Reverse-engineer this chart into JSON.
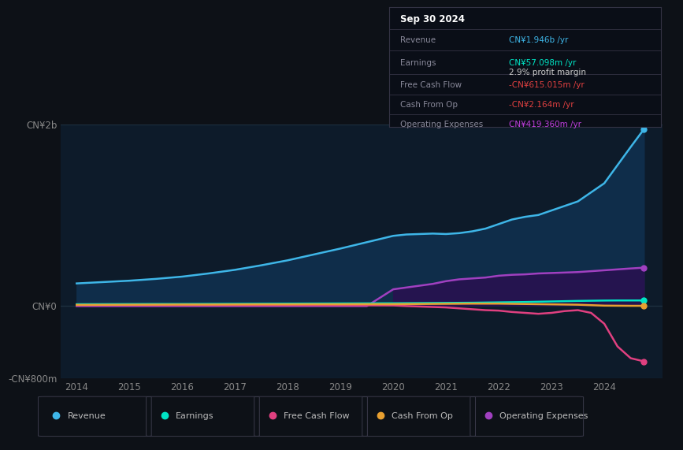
{
  "bg_color": "#0d1117",
  "plot_bg_color": "#0d1b2a",
  "title_box": {
    "date": "Sep 30 2024",
    "rows": [
      {
        "label": "Revenue",
        "value": "CN¥1.946b /yr",
        "value_color": "#3eb6e8"
      },
      {
        "label": "Earnings",
        "value": "CN¥57.098m /yr",
        "value_color": "#00e5c5"
      },
      {
        "label": "",
        "value": "2.9% profit margin",
        "value_color": "#cccccc"
      },
      {
        "label": "Free Cash Flow",
        "value": "-CN¥615.015m /yr",
        "value_color": "#e04040"
      },
      {
        "label": "Cash From Op",
        "value": "-CN¥2.164m /yr",
        "value_color": "#e04040"
      },
      {
        "label": "Operating Expenses",
        "value": "CN¥419.360m /yr",
        "value_color": "#c040e0"
      }
    ]
  },
  "ylim": [
    -800000000,
    2000000000
  ],
  "yticks": [
    -800000000,
    0,
    2000000000
  ],
  "ytick_labels": [
    "-CN¥800m",
    "CN¥0",
    "CN¥2b"
  ],
  "years": [
    2014,
    2014.5,
    2015,
    2015.5,
    2016,
    2016.5,
    2017,
    2017.5,
    2018,
    2018.5,
    2019,
    2019.5,
    2020,
    2020.25,
    2020.5,
    2020.75,
    2021,
    2021.25,
    2021.5,
    2021.75,
    2022,
    2022.25,
    2022.5,
    2022.75,
    2023,
    2023.25,
    2023.5,
    2023.75,
    2024,
    2024.25,
    2024.5,
    2024.75
  ],
  "revenue": [
    245000000.0,
    260000000.0,
    275000000.0,
    295000000.0,
    320000000.0,
    355000000.0,
    395000000.0,
    445000000.0,
    500000000.0,
    565000000.0,
    630000000.0,
    700000000.0,
    770000000.0,
    785000000.0,
    790000000.0,
    795000000.0,
    790000000.0,
    800000000.0,
    820000000.0,
    850000000.0,
    900000000.0,
    950000000.0,
    980000000.0,
    1000000000.0,
    1050000000.0,
    1100000000.0,
    1150000000.0,
    1250000000.0,
    1350000000.0,
    1550000000.0,
    1750000000.0,
    1946000000.0
  ],
  "earnings": [
    15000000.0,
    16000000.0,
    17000000.0,
    18000000.0,
    18000000.0,
    19000000.0,
    20000000.0,
    21000000.0,
    22000000.0,
    23000000.0,
    24000000.0,
    25000000.0,
    26000000.0,
    27000000.0,
    28000000.0,
    29000000.0,
    30000000.0,
    31000000.0,
    32000000.0,
    34000000.0,
    36000000.0,
    38000000.0,
    40000000.0,
    43000000.0,
    46000000.0,
    49000000.0,
    52000000.0,
    54000000.0,
    56000000.0,
    57000000.0,
    57000000.0,
    57000000.0
  ],
  "free_cash_flow": [
    5000000.0,
    5000000.0,
    5000000.0,
    5000000.0,
    5000000.0,
    5000000.0,
    5000000.0,
    5000000.0,
    5000000.0,
    5000000.0,
    4000000.0,
    3000000.0,
    2000000.0,
    -5000000.0,
    -10000000.0,
    -15000000.0,
    -20000000.0,
    -30000000.0,
    -40000000.0,
    -50000000.0,
    -55000000.0,
    -70000000.0,
    -80000000.0,
    -90000000.0,
    -80000000.0,
    -60000000.0,
    -50000000.0,
    -80000000.0,
    -200000000.0,
    -450000000.0,
    -580000000.0,
    -615000000.0
  ],
  "cash_from_op": [
    8000000.0,
    9000000.0,
    10000000.0,
    11000000.0,
    12000000.0,
    12000000.0,
    13000000.0,
    14000000.0,
    14000000.0,
    15000000.0,
    15000000.0,
    16000000.0,
    16000000.0,
    17000000.0,
    18000000.0,
    19000000.0,
    20000000.0,
    21000000.0,
    22000000.0,
    22000000.0,
    22000000.0,
    20000000.0,
    18000000.0,
    16000000.0,
    14000000.0,
    12000000.0,
    10000000.0,
    5000000.0,
    0,
    -1000000.0,
    -2000000.0,
    -2000000.0
  ],
  "op_expenses": [
    -5000000.0,
    -5000000.0,
    -5000000.0,
    -5000000.0,
    -5000000.0,
    -5000000.0,
    -5000000.0,
    -5000000.0,
    -5000000.0,
    -5000000.0,
    -5000000.0,
    -5000000.0,
    180000000.0,
    200000000.0,
    220000000.0,
    240000000.0,
    270000000.0,
    290000000.0,
    300000000.0,
    310000000.0,
    330000000.0,
    340000000.0,
    345000000.0,
    355000000.0,
    360000000.0,
    365000000.0,
    370000000.0,
    380000000.0,
    390000000.0,
    400000000.0,
    410000000.0,
    419000000.0
  ],
  "revenue_color": "#3eb6e8",
  "revenue_fill": "#0f2d4a",
  "earnings_color": "#00e5c5",
  "free_cash_flow_color": "#e04080",
  "cash_from_op_color": "#e8a030",
  "op_expenses_color": "#a040c0",
  "op_expenses_fill": "#2a1050",
  "grid_color": "#1e3040",
  "text_color": "#888888",
  "legend_labels": [
    "Revenue",
    "Earnings",
    "Free Cash Flow",
    "Cash From Op",
    "Operating Expenses"
  ],
  "legend_colors": [
    "#3eb6e8",
    "#00e5c5",
    "#e04080",
    "#e8a030",
    "#a040c0"
  ]
}
